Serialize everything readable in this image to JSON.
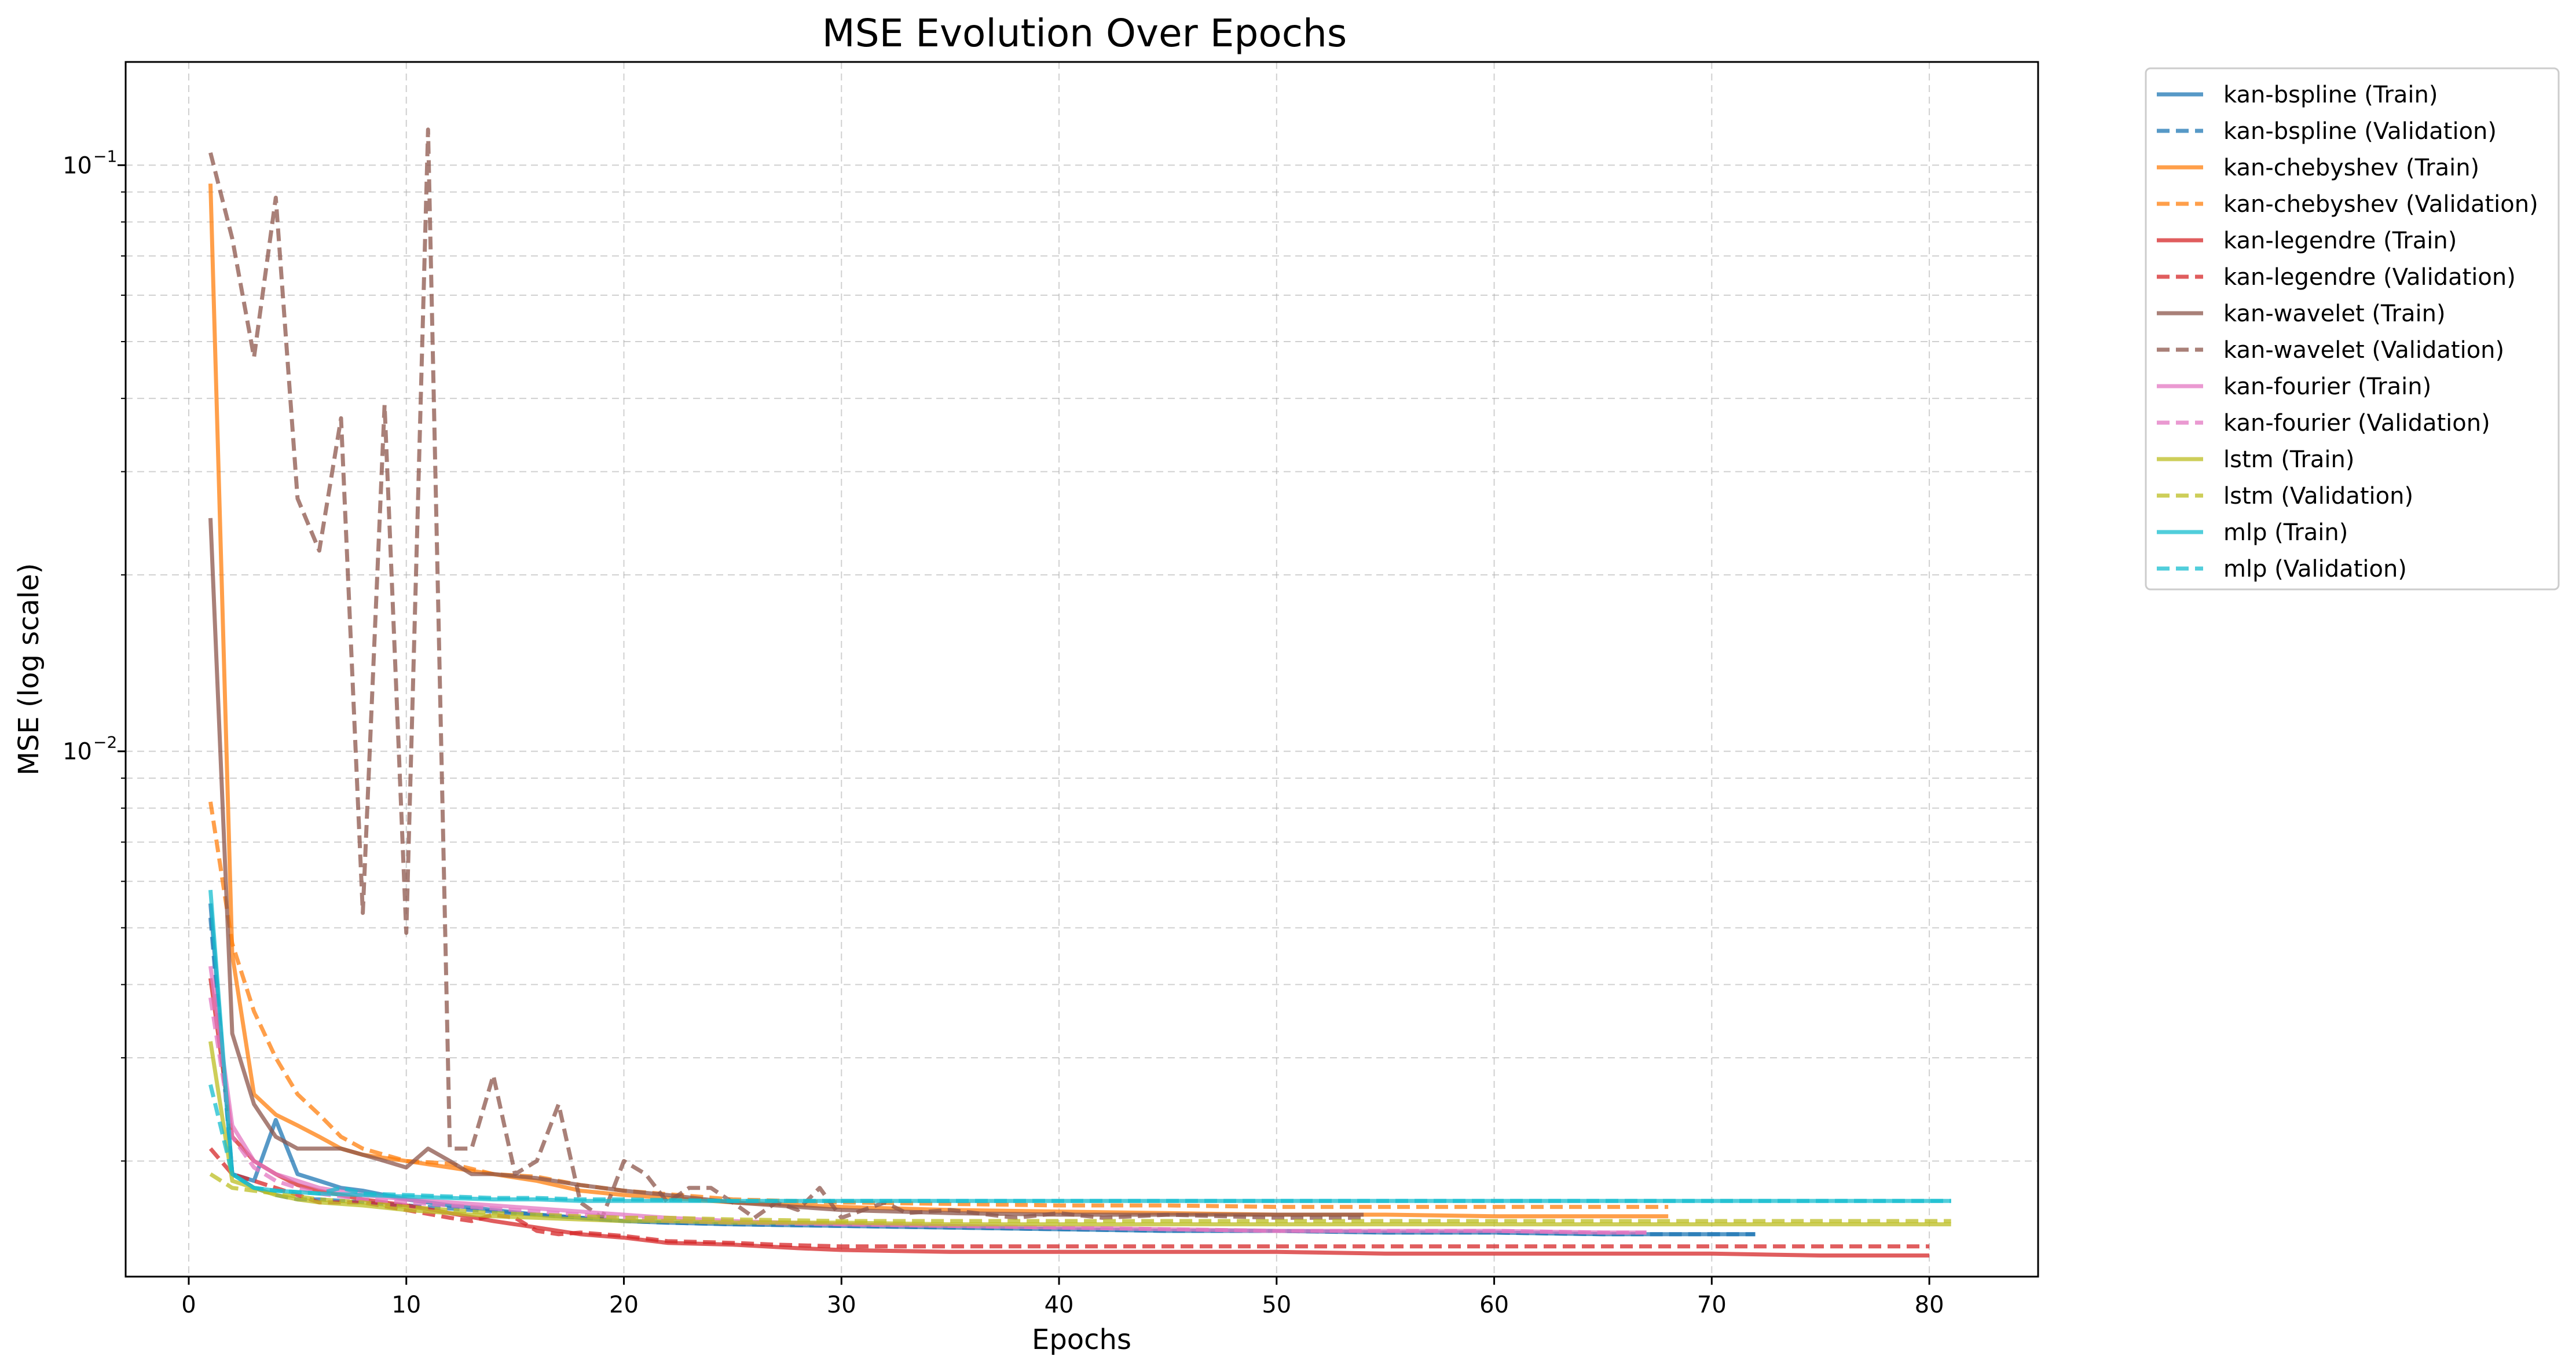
{
  "chart_data": {
    "type": "line",
    "title": "MSE Evolution Over Epochs",
    "xlabel": "Epochs",
    "ylabel": "MSE (log scale)",
    "yscale": "log",
    "xlim": [
      -2.9,
      85
    ],
    "ylim": [
      0.00127,
      0.15
    ],
    "xticks": [
      0,
      10,
      20,
      30,
      40,
      50,
      60,
      70,
      80
    ],
    "yticks": [
      {
        "value": 0.1,
        "base": "10",
        "exp": "−1"
      },
      {
        "value": 0.01,
        "base": "10",
        "exp": "−2"
      }
    ],
    "grid": true,
    "legend_position": "outside-top-right",
    "series": [
      {
        "name": "kan-bspline (Train)",
        "color": "#1f77b4",
        "dash": "solid",
        "x": [
          1,
          2,
          3,
          4,
          5,
          6,
          7,
          8,
          9,
          10,
          12,
          14,
          16,
          18,
          20,
          22,
          25,
          30,
          35,
          40,
          45,
          50,
          55,
          60,
          65,
          70,
          72
        ],
        "y": [
          0.0055,
          0.0019,
          0.00185,
          0.00235,
          0.0019,
          0.00185,
          0.0018,
          0.00178,
          0.00175,
          0.00172,
          0.00168,
          0.00165,
          0.00162,
          0.0016,
          0.00158,
          0.00157,
          0.00156,
          0.00155,
          0.00154,
          0.00153,
          0.00152,
          0.00152,
          0.00151,
          0.00151,
          0.0015,
          0.0015,
          0.0015
        ]
      },
      {
        "name": "kan-bspline (Validation)",
        "color": "#1f77b4",
        "dash": "dashed",
        "x": [
          1,
          2,
          3,
          4,
          5,
          6,
          8,
          10,
          12,
          14,
          16,
          18,
          20,
          22,
          25,
          30,
          35,
          40,
          45,
          50,
          55,
          60,
          65,
          70,
          72
        ],
        "y": [
          0.0052,
          0.0019,
          0.0018,
          0.00175,
          0.00172,
          0.00172,
          0.0017,
          0.00168,
          0.00166,
          0.00164,
          0.00162,
          0.0016,
          0.00158,
          0.00157,
          0.00156,
          0.00155,
          0.00154,
          0.00153,
          0.00152,
          0.00152,
          0.00151,
          0.00151,
          0.0015,
          0.0015,
          0.0015
        ]
      },
      {
        "name": "kan-chebyshev (Train)",
        "color": "#ff7f0e",
        "dash": "solid",
        "x": [
          1,
          2,
          3,
          4,
          5,
          6,
          7,
          8,
          10,
          12,
          14,
          16,
          18,
          20,
          25,
          30,
          35,
          40,
          45,
          50,
          55,
          60,
          65,
          68
        ],
        "y": [
          0.093,
          0.0045,
          0.0026,
          0.0024,
          0.0023,
          0.0022,
          0.0021,
          0.00205,
          0.002,
          0.00195,
          0.0019,
          0.00185,
          0.00178,
          0.00175,
          0.0017,
          0.00167,
          0.00165,
          0.00164,
          0.00163,
          0.00162,
          0.00162,
          0.00161,
          0.00161,
          0.00161
        ]
      },
      {
        "name": "kan-chebyshev (Validation)",
        "color": "#ff7f0e",
        "dash": "dashed",
        "x": [
          1,
          2,
          3,
          4,
          5,
          6,
          7,
          8,
          10,
          12,
          14,
          16,
          18,
          20,
          25,
          30,
          35,
          40,
          45,
          50,
          55,
          60,
          65,
          68
        ],
        "y": [
          0.0082,
          0.0047,
          0.0036,
          0.003,
          0.0026,
          0.0024,
          0.0022,
          0.0021,
          0.002,
          0.00198,
          0.0019,
          0.00188,
          0.00182,
          0.00178,
          0.00172,
          0.0017,
          0.00169,
          0.00168,
          0.00168,
          0.00167,
          0.00167,
          0.00167,
          0.00167,
          0.00167
        ]
      },
      {
        "name": "kan-legendre (Train)",
        "color": "#d62728",
        "dash": "solid",
        "x": [
          1,
          2,
          3,
          4,
          5,
          6,
          8,
          10,
          12,
          14,
          16,
          18,
          20,
          22,
          25,
          28,
          30,
          35,
          40,
          45,
          50,
          55,
          60,
          65,
          70,
          75,
          80
        ],
        "y": [
          0.0041,
          0.0022,
          0.002,
          0.0019,
          0.00182,
          0.00178,
          0.00172,
          0.00168,
          0.00163,
          0.00158,
          0.00154,
          0.0015,
          0.00148,
          0.00145,
          0.00144,
          0.00142,
          0.00141,
          0.0014,
          0.0014,
          0.0014,
          0.0014,
          0.00139,
          0.00139,
          0.00139,
          0.00139,
          0.00138,
          0.00138
        ]
      },
      {
        "name": "kan-legendre (Validation)",
        "color": "#d62728",
        "dash": "dashed",
        "x": [
          1,
          2,
          3,
          4,
          5,
          6,
          8,
          10,
          12,
          13,
          14,
          15,
          16,
          17,
          18,
          20,
          22,
          25,
          27,
          30,
          35,
          40,
          45,
          50,
          55,
          60,
          65,
          70,
          75,
          80
        ],
        "y": [
          0.0021,
          0.0019,
          0.00185,
          0.0018,
          0.00175,
          0.0017,
          0.0017,
          0.00165,
          0.0016,
          0.00158,
          0.00162,
          0.0016,
          0.00152,
          0.0015,
          0.00151,
          0.00149,
          0.00146,
          0.00145,
          0.00144,
          0.00143,
          0.00143,
          0.00143,
          0.00143,
          0.00143,
          0.00143,
          0.00143,
          0.00143,
          0.00143,
          0.00143,
          0.00143
        ]
      },
      {
        "name": "kan-wavelet (Train)",
        "color": "#8c564b",
        "dash": "solid",
        "x": [
          1,
          2,
          3,
          4,
          5,
          6,
          7,
          8,
          9,
          10,
          11,
          12,
          13,
          14,
          16,
          18,
          20,
          22,
          25,
          28,
          30,
          35,
          40,
          45,
          50,
          54
        ],
        "y": [
          0.025,
          0.0033,
          0.0025,
          0.0022,
          0.0021,
          0.0021,
          0.0021,
          0.00205,
          0.002,
          0.00195,
          0.0021,
          0.002,
          0.0019,
          0.0019,
          0.00187,
          0.00182,
          0.00178,
          0.00175,
          0.0017,
          0.00167,
          0.00165,
          0.00163,
          0.00162,
          0.00162,
          0.00162,
          0.00162
        ]
      },
      {
        "name": "kan-wavelet (Validation)",
        "color": "#8c564b",
        "dash": "dashed",
        "x": [
          1,
          2,
          3,
          4,
          5,
          6,
          7,
          8,
          9,
          10,
          11,
          12,
          13,
          14,
          15,
          16,
          17,
          18,
          19,
          20,
          21,
          22,
          23,
          24,
          25,
          26,
          27,
          28,
          29,
          30,
          31,
          32,
          33,
          35,
          38,
          40,
          42,
          45,
          50,
          54
        ],
        "y": [
          0.105,
          0.075,
          0.047,
          0.088,
          0.027,
          0.022,
          0.037,
          0.0053,
          0.039,
          0.0049,
          0.115,
          0.0021,
          0.0021,
          0.0028,
          0.0019,
          0.002,
          0.0025,
          0.0017,
          0.0016,
          0.002,
          0.0019,
          0.0017,
          0.0018,
          0.0018,
          0.0017,
          0.0016,
          0.0017,
          0.00165,
          0.0018,
          0.0016,
          0.00165,
          0.0017,
          0.00163,
          0.00165,
          0.0016,
          0.00163,
          0.0016,
          0.00162,
          0.0016,
          0.0016
        ]
      },
      {
        "name": "kan-fourier (Train)",
        "color": "#e377c2",
        "dash": "solid",
        "x": [
          1,
          2,
          3,
          4,
          5,
          6,
          8,
          10,
          12,
          14,
          16,
          18,
          20,
          22,
          25,
          30,
          35,
          40,
          45,
          50,
          55,
          60,
          65,
          67
        ],
        "y": [
          0.0043,
          0.0023,
          0.002,
          0.0019,
          0.00185,
          0.0018,
          0.00175,
          0.00172,
          0.0017,
          0.00168,
          0.00166,
          0.00164,
          0.00162,
          0.0016,
          0.00158,
          0.00156,
          0.00155,
          0.00154,
          0.00153,
          0.00152,
          0.00152,
          0.00152,
          0.00151,
          0.00151
        ]
      },
      {
        "name": "kan-fourier (Validation)",
        "color": "#e377c2",
        "dash": "dashed",
        "x": [
          1,
          2,
          3,
          4,
          5,
          6,
          8,
          10,
          12,
          14,
          16,
          18,
          20,
          22,
          25,
          30,
          35,
          40,
          45,
          50,
          55,
          60,
          65,
          67
        ],
        "y": [
          0.0038,
          0.0022,
          0.00195,
          0.00185,
          0.0018,
          0.00176,
          0.00172,
          0.0017,
          0.00168,
          0.00166,
          0.00164,
          0.00162,
          0.0016,
          0.00158,
          0.00157,
          0.00156,
          0.00155,
          0.00154,
          0.00153,
          0.00152,
          0.00152,
          0.00152,
          0.00151,
          0.00151
        ]
      },
      {
        "name": "lstm (Train)",
        "color": "#bcbd22",
        "dash": "solid",
        "x": [
          1,
          2,
          3,
          4,
          5,
          6,
          8,
          10,
          12,
          14,
          16,
          18,
          20,
          22,
          25,
          30,
          35,
          40,
          45,
          50,
          55,
          60,
          65,
          70,
          75,
          81
        ],
        "y": [
          0.0032,
          0.00185,
          0.0018,
          0.00175,
          0.00172,
          0.0017,
          0.00168,
          0.00165,
          0.00163,
          0.00161,
          0.0016,
          0.00159,
          0.00158,
          0.00158,
          0.00157,
          0.00157,
          0.00156,
          0.00156,
          0.00156,
          0.00156,
          0.00156,
          0.00156,
          0.00156,
          0.00156,
          0.00156,
          0.00156
        ]
      },
      {
        "name": "lstm (Validation)",
        "color": "#bcbd22",
        "dash": "dashed",
        "x": [
          1,
          2,
          3,
          4,
          5,
          6,
          8,
          10,
          12,
          14,
          16,
          18,
          20,
          22,
          25,
          30,
          35,
          40,
          45,
          50,
          55,
          60,
          65,
          70,
          75,
          81
        ],
        "y": [
          0.0019,
          0.0018,
          0.00178,
          0.00176,
          0.00174,
          0.00172,
          0.0017,
          0.00167,
          0.00165,
          0.00163,
          0.00162,
          0.00161,
          0.0016,
          0.0016,
          0.00159,
          0.00158,
          0.00158,
          0.00158,
          0.00158,
          0.00158,
          0.00158,
          0.00158,
          0.00158,
          0.00158,
          0.00158,
          0.00158
        ]
      },
      {
        "name": "mlp (Train)",
        "color": "#17becf",
        "dash": "solid",
        "x": [
          1,
          2,
          3,
          4,
          5,
          6,
          8,
          10,
          12,
          14,
          16,
          18,
          20,
          25,
          30,
          35,
          40,
          45,
          50,
          55,
          60,
          65,
          70,
          75,
          81
        ],
        "y": [
          0.0058,
          0.0019,
          0.0018,
          0.00178,
          0.00177,
          0.00176,
          0.00175,
          0.00174,
          0.00173,
          0.00172,
          0.00172,
          0.00171,
          0.00171,
          0.00171,
          0.00171,
          0.00171,
          0.00171,
          0.00171,
          0.00171,
          0.00171,
          0.00171,
          0.00171,
          0.00171,
          0.00171,
          0.00171
        ]
      },
      {
        "name": "mlp (Validation)",
        "color": "#17becf",
        "dash": "dashed",
        "x": [
          1,
          2,
          3,
          4,
          5,
          6,
          7,
          8,
          10,
          12,
          14,
          16,
          18,
          20,
          25,
          30,
          35,
          40,
          45,
          50,
          55,
          60,
          65,
          70,
          75,
          81
        ],
        "y": [
          0.0027,
          0.0019,
          0.0018,
          0.00178,
          0.00177,
          0.00176,
          0.0018,
          0.00176,
          0.00175,
          0.00174,
          0.00173,
          0.00173,
          0.00172,
          0.00172,
          0.00171,
          0.00171,
          0.00171,
          0.00171,
          0.00171,
          0.00171,
          0.00171,
          0.00171,
          0.00171,
          0.00171,
          0.00171,
          0.00171
        ]
      }
    ]
  }
}
